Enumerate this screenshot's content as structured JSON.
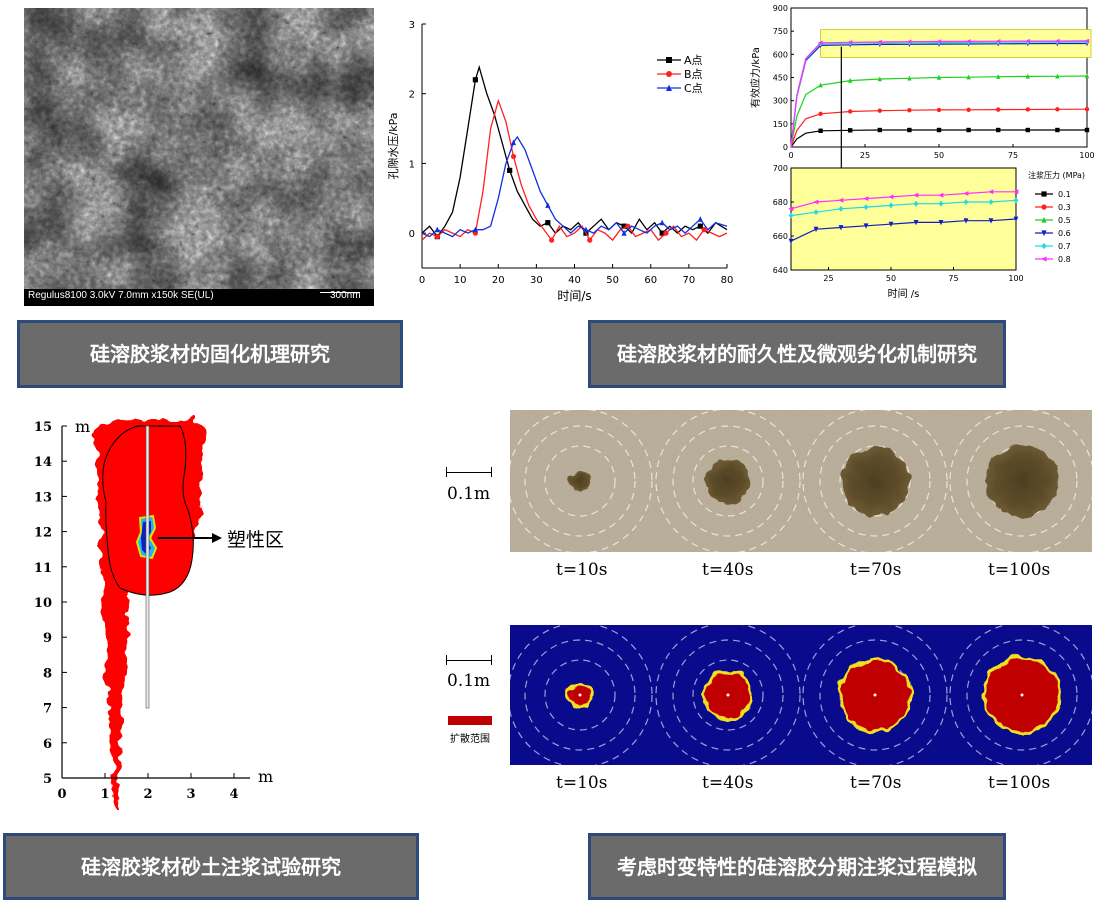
{
  "panels": {
    "top_left": {
      "sem_info": "Regulus8100 3.0kV 7.0mm x150k SE(UL)",
      "scale_label": "300nm",
      "caption": "硅溶胶浆材的固化机理研究"
    },
    "top_middle": {
      "caption": "硅溶胶浆材的耐久性及微观劣化机制研究",
      "chart_data": {
        "type": "line",
        "title": "",
        "xlabel": "时间/s",
        "ylabel": "孔隙水压/kPa",
        "xlim": [
          0,
          80
        ],
        "ylim": [
          -0.5,
          3
        ],
        "x_ticks": [
          "0",
          "10",
          "20",
          "30",
          "40",
          "50",
          "60",
          "70",
          "80"
        ],
        "y_ticks": [
          "0",
          "1",
          "2",
          "3"
        ],
        "legend_position": "top-right",
        "series": [
          {
            "name": "A点",
            "color": "#000000",
            "marker": "square",
            "x": [
              0,
              2,
              4,
              6,
              8,
              10,
              12,
              14,
              15,
              17,
              19,
              21,
              23,
              25,
              27,
              29,
              31,
              33,
              35,
              37,
              39,
              41,
              43,
              45,
              47,
              49,
              51,
              53,
              55,
              57,
              59,
              61,
              63,
              65,
              67,
              69,
              71,
              73,
              75,
              77,
              80
            ],
            "y": [
              0.0,
              0.1,
              -0.05,
              0.1,
              0.3,
              0.8,
              1.5,
              2.2,
              2.38,
              2.0,
              1.7,
              1.3,
              0.9,
              0.6,
              0.4,
              0.2,
              0.1,
              0.15,
              0.0,
              0.1,
              0.05,
              0.15,
              0.0,
              0.1,
              0.2,
              0.05,
              0.15,
              0.1,
              0.0,
              0.2,
              0.05,
              0.15,
              0.0,
              0.1,
              0.0,
              0.1,
              0.05,
              0.1,
              0.0,
              0.15,
              0.05
            ]
          },
          {
            "name": "B点",
            "color": "#ff2020",
            "marker": "circle",
            "x": [
              0,
              2,
              4,
              6,
              8,
              10,
              12,
              14,
              16,
              18,
              20,
              22,
              24,
              26,
              28,
              30,
              32,
              34,
              36,
              38,
              40,
              42,
              44,
              46,
              48,
              50,
              52,
              54,
              56,
              58,
              60,
              62,
              64,
              66,
              68,
              70,
              72,
              74,
              76,
              78,
              80
            ],
            "y": [
              -0.1,
              0.0,
              -0.05,
              0.05,
              0.0,
              -0.05,
              0.05,
              0.0,
              0.6,
              1.5,
              1.9,
              1.6,
              1.1,
              0.7,
              0.4,
              0.2,
              0.05,
              -0.1,
              0.1,
              -0.05,
              0.0,
              0.1,
              -0.1,
              0.05,
              0.0,
              -0.1,
              0.05,
              0.1,
              -0.05,
              0.0,
              0.05,
              -0.1,
              0.0,
              0.1,
              -0.05,
              0.0,
              -0.1,
              0.05,
              0.0,
              -0.05,
              0.0
            ]
          },
          {
            "name": "C点",
            "color": "#1030e0",
            "marker": "triangle",
            "x": [
              0,
              2,
              4,
              6,
              8,
              10,
              12,
              14,
              16,
              18,
              20,
              22,
              24,
              25,
              27,
              29,
              31,
              33,
              35,
              37,
              39,
              41,
              43,
              45,
              47,
              49,
              51,
              53,
              55,
              57,
              59,
              61,
              63,
              65,
              67,
              69,
              71,
              73,
              75,
              77,
              80
            ],
            "y": [
              0.0,
              -0.05,
              0.05,
              0.0,
              -0.05,
              0.05,
              0.0,
              0.05,
              0.05,
              0.1,
              0.5,
              1.0,
              1.3,
              1.38,
              1.2,
              0.9,
              0.6,
              0.4,
              0.2,
              0.1,
              0.0,
              0.1,
              0.05,
              0.0,
              0.1,
              0.05,
              0.15,
              0.0,
              0.1,
              0.05,
              0.0,
              0.1,
              0.15,
              0.05,
              0.1,
              0.0,
              0.1,
              0.2,
              0.05,
              0.15,
              0.1
            ]
          }
        ]
      }
    },
    "top_right": {
      "chart_data": [
        {
          "type": "line",
          "ylabel": "有效应力/kPa",
          "xlim": [
            0,
            100
          ],
          "ylim": [
            0,
            900
          ],
          "x_ticks": [
            "0",
            "25",
            "50",
            "75",
            "100"
          ],
          "y_ticks": [
            "0",
            "150",
            "300",
            "450",
            "600",
            "750",
            "900"
          ],
          "x": [
            10,
            20,
            30,
            40,
            50,
            60,
            70,
            80,
            90,
            100
          ],
          "series": [
            {
              "name": "0.1",
              "color": "#000000",
              "marker": "square",
              "values": [
                105,
                108,
                110,
                110,
                110,
                110,
                110,
                110,
                110,
                110
              ]
            },
            {
              "name": "0.3",
              "color": "#ff2020",
              "marker": "circle",
              "values": [
                215,
                230,
                235,
                238,
                240,
                241,
                242,
                243,
                244,
                245
              ]
            },
            {
              "name": "0.5",
              "color": "#20d020",
              "marker": "triangle",
              "values": [
                400,
                430,
                440,
                445,
                450,
                452,
                455,
                457,
                458,
                460
              ]
            },
            {
              "name": "0.6",
              "color": "#1020c0",
              "marker": "triangle-down",
              "values": [
                658,
                662,
                664,
                665,
                666,
                667,
                668,
                669,
                670,
                670
              ]
            },
            {
              "name": "0.7",
              "color": "#20d8e8",
              "marker": "diamond",
              "values": [
                668,
                672,
                674,
                675,
                676,
                677,
                678,
                679,
                680,
                681
              ]
            },
            {
              "name": "0.8",
              "color": "#ff30ff",
              "marker": "triangle-left",
              "values": [
                675,
                678,
                680,
                682,
                683,
                684,
                685,
                686,
                686,
                687
              ]
            }
          ]
        },
        {
          "type": "line",
          "xlabel": "时间 /s",
          "xlim": [
            10,
            100
          ],
          "ylim": [
            640,
            700
          ],
          "x_ticks": [
            "25",
            "50",
            "75",
            "100"
          ],
          "y_ticks": [
            "640",
            "660",
            "680",
            "700"
          ],
          "legend_title": "注浆压力 (MPa)",
          "legend_position": "right",
          "x": [
            10,
            20,
            30,
            40,
            50,
            60,
            70,
            80,
            90,
            100
          ],
          "series": [
            {
              "name": "0.6",
              "color": "#1020c0",
              "marker": "triangle-down",
              "values": [
                657,
                664,
                665,
                666,
                667,
                668,
                668,
                669,
                669,
                670
              ]
            },
            {
              "name": "0.7",
              "color": "#20d8e8",
              "marker": "diamond",
              "values": [
                672,
                674,
                676,
                677,
                678,
                679,
                679,
                680,
                680,
                681
              ]
            },
            {
              "name": "0.8",
              "color": "#ff30ff",
              "marker": "triangle-left",
              "values": [
                676,
                680,
                681,
                682,
                683,
                684,
                684,
                685,
                686,
                686
              ]
            }
          ]
        }
      ]
    },
    "bottom_left": {
      "axis_unit_y": "m",
      "axis_unit_x": "m",
      "y_ticks": [
        "5",
        "6",
        "7",
        "8",
        "9",
        "10",
        "11",
        "12",
        "13",
        "14",
        "15"
      ],
      "x_ticks": [
        "0",
        "1",
        "2",
        "3",
        "4"
      ],
      "plastic_zone_label": "塑性区",
      "caption": "硅溶胶浆材砂土注浆试验研究"
    },
    "bottom_right": {
      "scale_label_top": "0.1m",
      "scale_label_bottom": "0.1m",
      "legend_label": "扩散范围",
      "time_labels": [
        "t=10s",
        "t=40s",
        "t=70s",
        "t=100s"
      ],
      "caption": "考虑时变特性的硅溶胶分期注浆过程模拟"
    }
  },
  "colors": {
    "caption_bg": "#6b6b6b",
    "caption_border": "#2e4a7d",
    "highlight_yellow": "#ffff99",
    "sim_background": "#0a0a8c",
    "grout_red": "#c00000"
  }
}
